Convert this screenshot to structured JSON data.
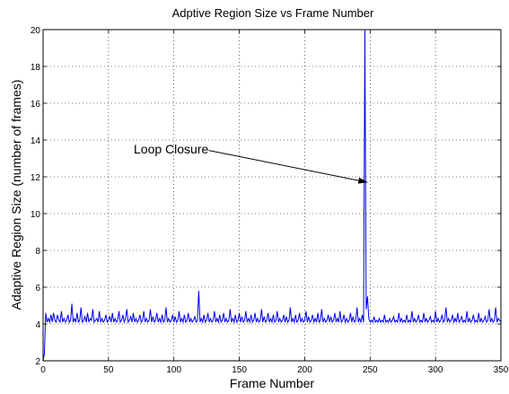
{
  "chart_data": {
    "type": "line",
    "title": "Adptive Region Size vs Frame Number",
    "xlabel": "Frame Number",
    "ylabel": "Adaptive Region Size (number of frames)",
    "xlim": [
      0,
      350
    ],
    "ylim": [
      2,
      20
    ],
    "xticks": [
      0,
      50,
      100,
      150,
      200,
      250,
      300,
      350
    ],
    "yticks": [
      2,
      4,
      6,
      8,
      10,
      12,
      14,
      16,
      18,
      20
    ],
    "grid": true,
    "series_color": "#0000ee",
    "annotation": {
      "text": "Loop Closure",
      "points_to": [
        250,
        11.7
      ]
    },
    "series": [
      {
        "x": [
          0,
          1,
          2,
          3,
          4,
          5,
          6,
          7,
          8,
          9,
          10,
          11,
          12,
          13,
          14,
          15,
          16,
          17,
          18,
          19,
          20,
          21,
          22,
          23,
          24,
          25,
          26,
          27,
          28,
          29,
          30,
          31,
          32,
          33,
          34,
          35,
          36,
          37,
          38,
          39,
          40,
          41,
          42,
          43,
          44,
          45,
          46,
          47,
          48,
          49,
          50,
          51,
          52,
          53,
          54,
          55,
          56,
          57,
          58,
          59,
          60,
          61,
          62,
          63,
          64,
          65,
          66,
          67,
          68,
          69,
          70,
          71,
          72,
          73,
          74,
          75,
          76,
          77,
          78,
          79,
          80,
          81,
          82,
          83,
          84,
          85,
          86,
          87,
          88,
          89,
          90,
          91,
          92,
          93,
          94,
          95,
          96,
          97,
          98,
          99,
          100,
          101,
          102,
          103,
          104,
          105,
          106,
          107,
          108,
          109,
          110,
          111,
          112,
          113,
          114,
          115,
          116,
          117,
          118,
          119,
          120,
          121,
          122,
          123,
          124,
          125,
          126,
          127,
          128,
          129,
          130,
          131,
          132,
          133,
          134,
          135,
          136,
          137,
          138,
          139,
          140,
          141,
          142,
          143,
          144,
          145,
          146,
          147,
          148,
          149,
          150,
          151,
          152,
          153,
          154,
          155,
          156,
          157,
          158,
          159,
          160,
          161,
          162,
          163,
          164,
          165,
          166,
          167,
          168,
          169,
          170,
          171,
          172,
          173,
          174,
          175,
          176,
          177,
          178,
          179,
          180,
          181,
          182,
          183,
          184,
          185,
          186,
          187,
          188,
          189,
          190,
          191,
          192,
          193,
          194,
          195,
          196,
          197,
          198,
          199,
          200,
          201,
          202,
          203,
          204,
          205,
          206,
          207,
          208,
          209,
          210,
          211,
          212,
          213,
          214,
          215,
          216,
          217,
          218,
          219,
          220,
          221,
          222,
          223,
          224,
          225,
          226,
          227,
          228,
          229,
          230,
          231,
          232,
          233,
          234,
          235,
          236,
          237,
          238,
          239,
          240,
          241,
          242,
          243,
          244,
          245,
          246,
          247,
          248,
          249,
          250,
          251,
          252,
          253,
          254,
          255,
          256,
          257,
          258,
          259,
          260,
          261,
          262,
          263,
          264,
          265,
          266,
          267,
          268,
          269,
          270,
          271,
          272,
          273,
          274,
          275,
          276,
          277,
          278,
          279,
          280,
          281,
          282,
          283,
          284,
          285,
          286,
          287,
          288,
          289,
          290,
          291,
          292,
          293,
          294,
          295,
          296,
          297,
          298,
          299,
          300,
          301,
          302,
          303,
          304,
          305,
          306,
          307,
          308,
          309,
          310,
          311,
          312,
          313,
          314,
          315,
          316,
          317,
          318,
          319,
          320,
          321,
          322,
          323,
          324,
          325,
          326,
          327,
          328,
          329,
          330,
          331,
          332,
          333,
          334,
          335,
          336,
          337,
          338,
          339,
          340,
          341,
          342,
          343,
          344,
          345,
          346,
          347,
          348,
          349,
          350
        ],
        "y": [
          2,
          2.4,
          4.6,
          4.1,
          4.3,
          4.1,
          4.5,
          4.1,
          4.6,
          4.2,
          4.1,
          4.5,
          4.2,
          4.1,
          4.7,
          4.1,
          4.3,
          4.1,
          4.2,
          4.5,
          4.1,
          4.2,
          5.1,
          4.1,
          4.3,
          4.1,
          4.6,
          4.1,
          4.2,
          4.9,
          4.1,
          4.2,
          4.4,
          4.1,
          4.6,
          4.1,
          4.3,
          4.2,
          4.8,
          4.1,
          4.2,
          4.3,
          4.1,
          4.7,
          4.1,
          4.3,
          4.1,
          4.2,
          4.5,
          4.1,
          4.2,
          4.4,
          4.1,
          4.6,
          4.1,
          4.3,
          4.1,
          4.2,
          4.7,
          4.1,
          4.2,
          4.5,
          4.1,
          4.3,
          4.8,
          4.1,
          4.2,
          4.4,
          4.1,
          4.6,
          4.1,
          4.3,
          4.1,
          4.2,
          4.5,
          4.1,
          4.2,
          4.7,
          4.1,
          4.3,
          4.1,
          4.2,
          4.8,
          4.1,
          4.4,
          4.1,
          4.2,
          4.6,
          4.1,
          4.3,
          4.1,
          4.5,
          4.1,
          4.2,
          4.9,
          4.1,
          4.3,
          4.1,
          4.2,
          4.5,
          4.1,
          4.4,
          4.1,
          4.2,
          4.7,
          4.1,
          4.3,
          4.1,
          4.5,
          4.1,
          4.2,
          4.6,
          4.1,
          4.3,
          4.1,
          4.2,
          4.4,
          4.1,
          4.2,
          5.8,
          4.1,
          4.3,
          4.1,
          4.5,
          4.1,
          4.2,
          4.6,
          4.1,
          4.3,
          4.1,
          4.2,
          4.7,
          4.1,
          4.3,
          4.1,
          4.5,
          4.1,
          4.2,
          4.6,
          4.1,
          4.3,
          4.1,
          4.2,
          4.8,
          4.1,
          4.3,
          4.1,
          4.5,
          4.1,
          4.2,
          4.6,
          4.1,
          4.4,
          4.1,
          4.2,
          4.7,
          4.1,
          4.3,
          4.1,
          4.5,
          4.1,
          4.2,
          4.6,
          4.1,
          4.3,
          4.1,
          4.2,
          4.8,
          4.1,
          4.4,
          4.1,
          4.2,
          4.6,
          4.1,
          4.3,
          4.1,
          4.5,
          4.1,
          4.2,
          4.7,
          4.1,
          4.3,
          4.1,
          4.2,
          4.5,
          4.1,
          4.4,
          4.1,
          4.2,
          4.9,
          4.1,
          4.3,
          4.1,
          4.5,
          4.1,
          4.2,
          4.6,
          4.1,
          4.3,
          4.1,
          4.2,
          4.7,
          4.1,
          4.4,
          4.1,
          4.2,
          4.5,
          4.1,
          4.3,
          4.1,
          4.6,
          4.1,
          4.2,
          4.8,
          4.1,
          4.3,
          4.1,
          4.2,
          4.5,
          4.1,
          4.4,
          4.1,
          4.2,
          4.6,
          4.1,
          4.3,
          4.1,
          4.7,
          4.1,
          4.2,
          4.5,
          4.1,
          4.3,
          4.1,
          4.2,
          4.6,
          4.1,
          4.4,
          4.1,
          4.2,
          4.9,
          4.1,
          4.3,
          4.1,
          4.5,
          4.1,
          20,
          4.8,
          5.5,
          4.3,
          4.1,
          4.2,
          4.1,
          4.4,
          4.1,
          4.2,
          4.1,
          4.3,
          4.1,
          4.2,
          4.1,
          4.5,
          4.1,
          4.2,
          4.1,
          4.3,
          4.1,
          4.2,
          4.4,
          4.1,
          4.2,
          4.1,
          4.6,
          4.1,
          4.3,
          4.1,
          4.2,
          4.1,
          4.5,
          4.1,
          4.2,
          4.1,
          4.7,
          4.1,
          4.3,
          4.1,
          4.2,
          4.5,
          4.1,
          4.2,
          4.1,
          4.6,
          4.1,
          4.3,
          4.1,
          4.2,
          4.4,
          4.1,
          4.2,
          4.1,
          4.7,
          4.1,
          4.3,
          4.1,
          4.2,
          4.5,
          4.1,
          4.2,
          4.9,
          4.1,
          4.3,
          4.1,
          4.2,
          4.5,
          4.1,
          4.3,
          4.1,
          4.6,
          4.1,
          4.2,
          4.4,
          4.1,
          4.2,
          4.1,
          4.7,
          4.1,
          4.3,
          4.1,
          4.2,
          4.5,
          4.1,
          4.2,
          4.1,
          4.6,
          4.1,
          4.3,
          4.1,
          4.2,
          4.4,
          4.1,
          4.2,
          4.8,
          4.1,
          4.3,
          4.1,
          4.2,
          4.9,
          4.1,
          4.3,
          4.2,
          4.1
        ]
      }
    ]
  }
}
